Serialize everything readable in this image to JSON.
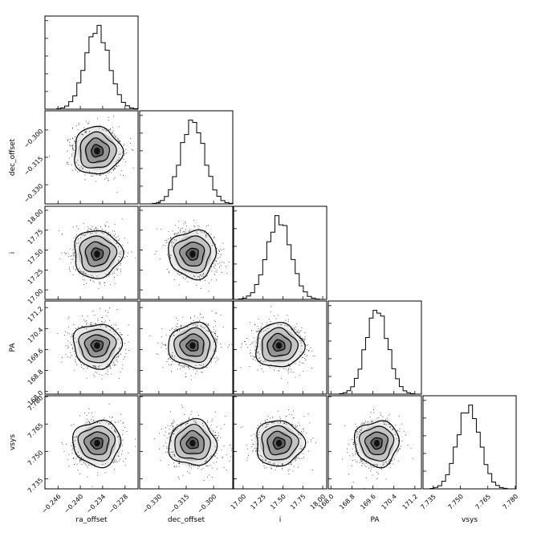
{
  "chart_data": {
    "type": "corner",
    "parameters": [
      {
        "name": "ra_offset",
        "label": "ra_offset",
        "range": [
          -0.2495,
          -0.2245
        ],
        "ticks": [
          -0.246,
          -0.24,
          -0.234,
          -0.228
        ],
        "tick_labels": [
          "−0.246",
          "−0.240",
          "−0.234",
          "−0.228"
        ],
        "mean": -0.2355,
        "std": 0.0032
      },
      {
        "name": "dec_offset",
        "label": "dec_offset",
        "range": [
          -0.3405,
          -0.2895
        ],
        "ticks": [
          -0.33,
          -0.315,
          -0.3
        ],
        "tick_labels": [
          "−0.330",
          "−0.315",
          "−0.300"
        ],
        "mean": -0.3115,
        "std": 0.0065
      },
      {
        "name": "i",
        "label": "i",
        "range": [
          16.88,
          18.05
        ],
        "ticks": [
          17.0,
          17.25,
          17.5,
          17.75,
          18.0
        ],
        "tick_labels": [
          "17.00",
          "17.25",
          "17.50",
          "17.75",
          "18.00"
        ],
        "mean": 17.45,
        "std": 0.15
      },
      {
        "name": "PA",
        "label": "PA",
        "range": [
          167.9,
          171.45
        ],
        "ticks": [
          168.0,
          168.8,
          169.6,
          170.4,
          171.2
        ],
        "tick_labels": [
          "168.0",
          "168.8",
          "169.6",
          "170.4",
          "171.2"
        ],
        "mean": 169.75,
        "std": 0.42
      },
      {
        "name": "vsys",
        "label": "vsys",
        "range": [
          7.7295,
          7.7805
        ],
        "ticks": [
          7.735,
          7.75,
          7.765,
          7.78
        ],
        "tick_labels": [
          "7.735",
          "7.750",
          "7.765",
          "7.780"
        ],
        "mean": 7.7545,
        "std": 0.0062
      }
    ],
    "histogram_bins": 20,
    "grid": false,
    "legend": "none"
  },
  "colors": {
    "ink": "#000000",
    "background": "#ffffff",
    "density_dark": "#333333",
    "density_light": "#e6e6e6"
  }
}
